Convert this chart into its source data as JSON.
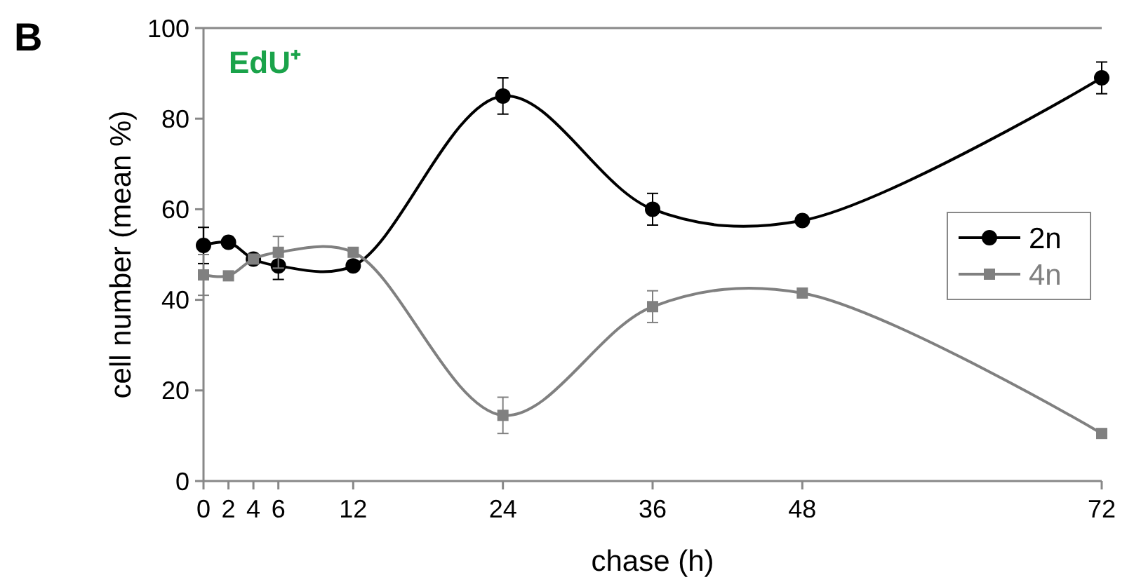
{
  "chart_data": {
    "type": "line",
    "title": "EdU⁺",
    "xlabel": "chase (h)",
    "ylabel": "cell number (mean %)",
    "annotations": [
      "B"
    ],
    "x": [
      0,
      2,
      4,
      6,
      12,
      24,
      36,
      48,
      72
    ],
    "xlim": [
      0,
      72
    ],
    "xticks": [
      0,
      2,
      4,
      6,
      12,
      24,
      36,
      48,
      72
    ],
    "ylim": [
      0,
      100
    ],
    "yticks": [
      0,
      20,
      40,
      60,
      80,
      100
    ],
    "series": [
      {
        "name": "2n",
        "color": "#000000",
        "marker": "circle",
        "values": [
          52,
          52.7,
          49,
          47.5,
          47.5,
          85,
          60,
          57.5,
          89
        ],
        "errors": [
          4,
          null,
          null,
          3,
          null,
          4,
          3.5,
          null,
          3.5
        ]
      },
      {
        "name": "4n",
        "color": "#808080",
        "marker": "square",
        "values": [
          45.5,
          45.3,
          49,
          50.5,
          50.5,
          14.5,
          38.5,
          41.5,
          10.5
        ],
        "errors": [
          4.5,
          null,
          null,
          3.5,
          null,
          4,
          3.5,
          null,
          null
        ]
      }
    ],
    "grid": false,
    "legend": "right",
    "line_style": "solid"
  }
}
